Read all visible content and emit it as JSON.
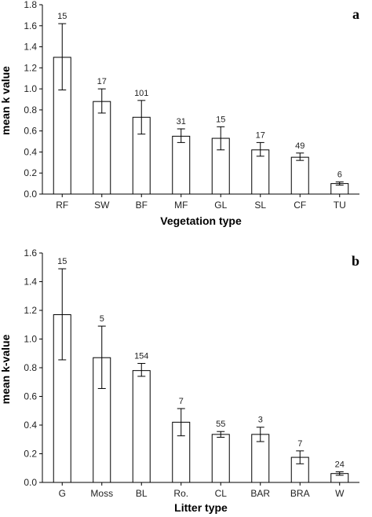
{
  "chart_data": [
    {
      "type": "bar",
      "panel_label": "a",
      "xlabel": "Vegetation type",
      "ylabel": "mean k value",
      "ylim": [
        0,
        1.8
      ],
      "yticks": [
        "0.0",
        "0.2",
        "0.4",
        "0.6",
        "0.8",
        "1.0",
        "1.2",
        "1.4",
        "1.6",
        "1.8"
      ],
      "categories": [
        "RF",
        "SW",
        "BF",
        "MF",
        "GL",
        "SL",
        "CF",
        "TU"
      ],
      "values": [
        1.3,
        0.88,
        0.73,
        0.55,
        0.53,
        0.42,
        0.35,
        0.1
      ],
      "error_low": [
        0.99,
        0.77,
        0.57,
        0.49,
        0.42,
        0.36,
        0.32,
        0.085
      ],
      "error_high": [
        1.62,
        1.0,
        0.89,
        0.62,
        0.64,
        0.49,
        0.39,
        0.115
      ],
      "sample_sizes": [
        "15",
        "17",
        "101",
        "31",
        "15",
        "17",
        "49",
        "6"
      ],
      "grid": false
    },
    {
      "type": "bar",
      "panel_label": "b",
      "xlabel": "Litter type",
      "ylabel": "mean k-value",
      "ylim": [
        0,
        1.6
      ],
      "yticks": [
        "0.0",
        "0.2",
        "0.4",
        "0.6",
        "0.8",
        "1.0",
        "1.2",
        "1.4",
        "1.6"
      ],
      "categories": [
        "G",
        "Moss",
        "BL",
        "Ro.",
        "CL",
        "BAR",
        "BRA",
        "W"
      ],
      "values": [
        1.17,
        0.87,
        0.78,
        0.42,
        0.335,
        0.335,
        0.175,
        0.062
      ],
      "error_low": [
        0.855,
        0.655,
        0.74,
        0.325,
        0.315,
        0.285,
        0.13,
        0.05
      ],
      "error_high": [
        1.49,
        1.09,
        0.83,
        0.515,
        0.355,
        0.385,
        0.22,
        0.074
      ],
      "sample_sizes": [
        "15",
        "5",
        "154",
        "7",
        "55",
        "3",
        "7",
        "24"
      ],
      "grid": false
    }
  ]
}
